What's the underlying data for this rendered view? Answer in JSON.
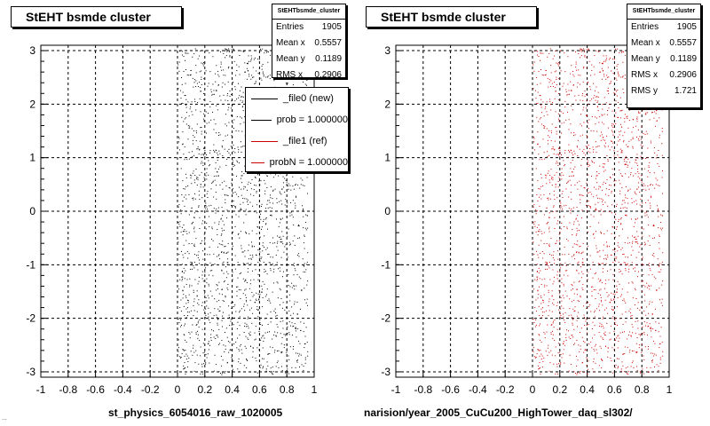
{
  "panels": [
    {
      "title": "StEHT bsmde cluster",
      "stats": {
        "name": "StEHTbsmde_cluster",
        "rows": [
          {
            "label": "Entries",
            "value": "1905"
          },
          {
            "label": "Mean x",
            "value": "0.5557"
          },
          {
            "label": "Mean y",
            "value": "0.1189"
          },
          {
            "label": "RMS x",
            "value": "0.2906"
          }
        ]
      },
      "xcaption": "st_physics_6054016_raw_1020005",
      "point_color": "#000000"
    },
    {
      "title": "StEHT bsmde cluster",
      "stats": {
        "name": "StEHTbsmde_cluster",
        "rows": [
          {
            "label": "Entries",
            "value": "1905"
          },
          {
            "label": "Mean x",
            "value": "0.5557"
          },
          {
            "label": "Mean y",
            "value": "0.1189"
          },
          {
            "label": "RMS x",
            "value": "0.2906"
          },
          {
            "label": "RMS y",
            "value": "1.721"
          }
        ]
      },
      "xcaption": "narision/year_2005_CuCu200_HighTower_daq_sl302/",
      "point_color": "#cc0000"
    }
  ],
  "legend": {
    "entries": [
      {
        "label": "_file0 (new)",
        "color": "#000000"
      },
      {
        "label": "prob = 1.000000",
        "color": "#000000"
      },
      {
        "label": "_file1 (ref)",
        "color": "#cc0000"
      },
      {
        "label": "probN = 1.000000",
        "color": "#cc0000"
      }
    ]
  },
  "footer_text": "...",
  "chart_data": {
    "type": "scatter",
    "xlim": [
      -1,
      1
    ],
    "ylim": [
      -3.1,
      3.1
    ],
    "x_ticks": [
      "-1",
      "-0.8",
      "-0.6",
      "-0.4",
      "-0.2",
      "0",
      "0.2",
      "0.4",
      "0.6",
      "0.8",
      "1"
    ],
    "y_ticks": [
      "-3",
      "-2",
      "-1",
      "0",
      "1",
      "2",
      "3"
    ],
    "grid": true,
    "entries": 1905,
    "mean_x": 0.5557,
    "mean_y": 0.1189,
    "rms_x": 0.2906,
    "rms_y": 1.721,
    "point_x_range": [
      0.0,
      0.95
    ],
    "point_y_range": [
      -3.05,
      3.05
    ],
    "series": [
      {
        "name": "_file0 (new)",
        "color": "#000000"
      },
      {
        "name": "_file1 (ref)",
        "color": "#cc0000"
      }
    ]
  }
}
